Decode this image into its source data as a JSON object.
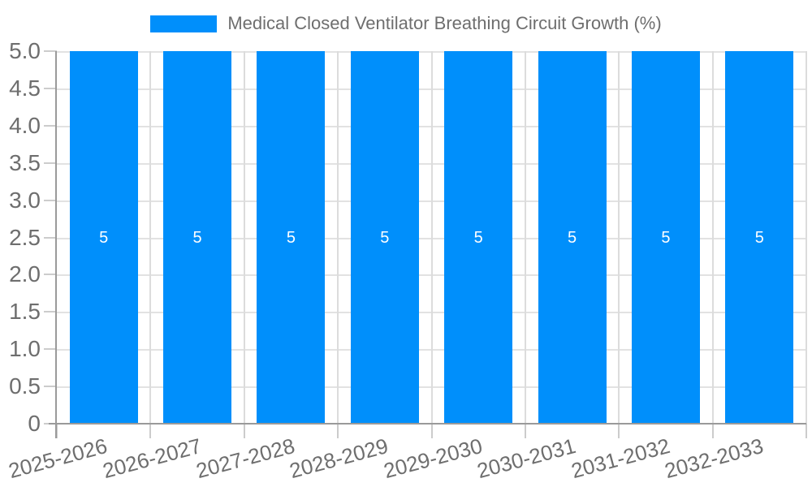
{
  "legend": {
    "series_label": "Medical Closed Ventilator Breathing Circuit Growth (%)"
  },
  "chart_data": {
    "type": "bar",
    "title": "Medical Closed Ventilator Breathing Circuit Growth (%)",
    "categories": [
      "2025-2026",
      "2026-2027",
      "2027-2028",
      "2028-2029",
      "2029-2030",
      "2030-2031",
      "2031-2032",
      "2032-2033"
    ],
    "values": [
      5,
      5,
      5,
      5,
      5,
      5,
      5,
      5
    ],
    "bar_labels": [
      "5",
      "5",
      "5",
      "5",
      "5",
      "5",
      "5",
      "5"
    ],
    "xlabel": "",
    "ylabel": "",
    "ylim": [
      0,
      5
    ],
    "ytick_step": 0.5,
    "ytick_labels": [
      "5.0",
      "4.5",
      "4.0",
      "3.5",
      "3.0",
      "2.5",
      "2.0",
      "1.5",
      "1.0",
      "0.5",
      "0"
    ],
    "grid": true,
    "legend_position": "top",
    "colors": {
      "bar": "#008FFB",
      "bar_label": "#FFFFFF",
      "axis_text": "#6E6E6E",
      "grid_line": "#E0E0E0",
      "axis_line": "#9A9A9A",
      "tick_line": "#CCCCCC",
      "background": "#FFFFFF"
    }
  }
}
